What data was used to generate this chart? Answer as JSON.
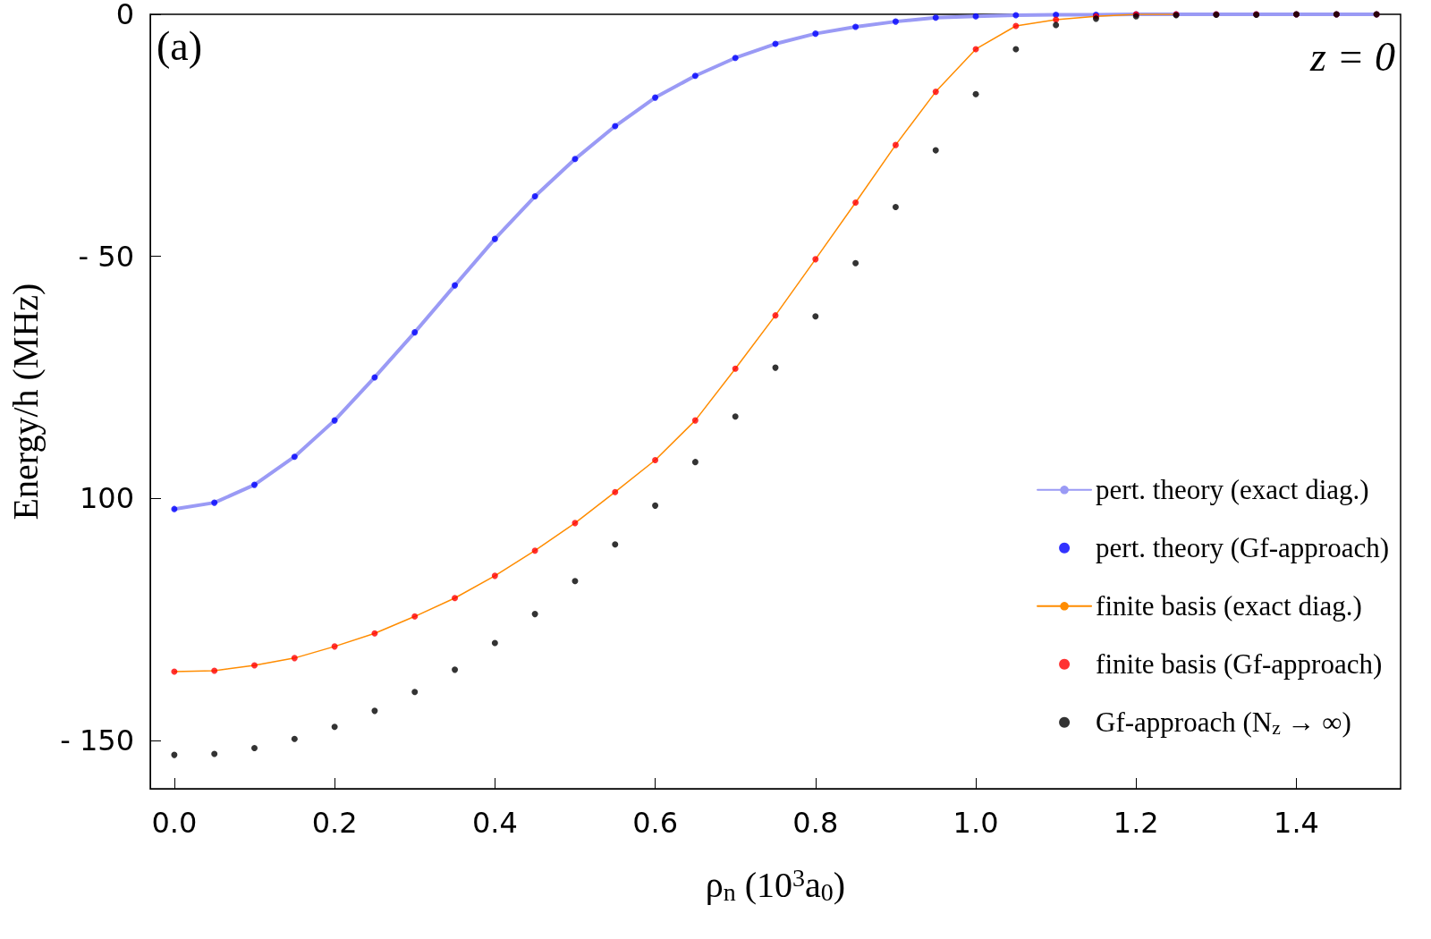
{
  "chart_data": {
    "type": "line",
    "xlabel": "ρ$_{n}$ (10$^{3}$a$_{0}$)",
    "ylabel": "Energy/h (MHz)",
    "annotations": [
      "(a)",
      "z = 0"
    ],
    "x": [
      0,
      0.05,
      0.1,
      0.15,
      0.2,
      0.25,
      0.3,
      0.35,
      0.4,
      0.45,
      0.5,
      0.55,
      0.6,
      0.65,
      0.7,
      0.75,
      0.8,
      0.85,
      0.9,
      0.95,
      1.0,
      1.05,
      1.1,
      1.15,
      1.2,
      1.25,
      1.3,
      1.35,
      1.4,
      1.45,
      1.5
    ],
    "xlim": [
      -0.03,
      1.53
    ],
    "xticks": [
      {
        "value": 0,
        "label": "0.0"
      },
      0.2,
      0.4,
      0.6,
      0.8,
      {
        "value": 1,
        "label": "1.0"
      },
      1.2,
      1.4
    ],
    "ylim": [
      -160,
      0
    ],
    "yticks": [
      0,
      {
        "value": -50,
        "label": "- 50"
      },
      {
        "value": -100,
        "label": "100"
      },
      {
        "value": -150,
        "label": "- 150"
      }
    ],
    "grid": false,
    "legend": "bottom right",
    "series": [
      {
        "name": "pert. theory (exact diag.)",
        "marker": "none",
        "color": "#9a9af5",
        "values": [
          -102.2,
          -100.9,
          -97.2,
          -91.4,
          -83.9,
          -75.0,
          -65.7,
          -56.0,
          -46.4,
          -37.6,
          -29.9,
          -23.1,
          -17.2,
          -12.7,
          -9.0,
          -6.1,
          -4.0,
          -2.6,
          -1.5,
          -0.7,
          -0.4,
          -0.2,
          -0.1,
          -0.1,
          0,
          0,
          0,
          0,
          0,
          0,
          0
        ]
      },
      {
        "name": "pert. theory (Gf-approach)",
        "type": "scatter",
        "marker": "circle",
        "color": "#0000ff",
        "values": [
          -102.2,
          -100.9,
          -97.2,
          -91.4,
          -83.9,
          -75.0,
          -65.7,
          -56.0,
          -46.4,
          -37.6,
          -29.9,
          -23.1,
          -17.2,
          -12.7,
          -9.0,
          -6.1,
          -4.0,
          -2.6,
          -1.5,
          -0.7,
          -0.4,
          -0.2,
          -0.1,
          -0.1,
          0,
          0,
          0,
          0,
          0,
          0,
          0
        ]
      },
      {
        "name": "finite basis (exact diag.)",
        "marker": "none",
        "color": "#ff8c00",
        "values": [
          -135.8,
          -135.6,
          -134.5,
          -133.0,
          -130.6,
          -127.9,
          -124.4,
          -120.6,
          -116.0,
          -110.8,
          -105.1,
          -98.7,
          -92.1,
          -83.9,
          -73.2,
          -62.2,
          -50.6,
          -38.9,
          -27.0,
          -16.0,
          -7.2,
          -2.4,
          -1.1,
          -0.4,
          0,
          0,
          null,
          null,
          null,
          null,
          null
        ]
      },
      {
        "name": "finite basis (Gf-approach)",
        "type": "scatter",
        "marker": "circle",
        "color": "#ff0000",
        "values": [
          -135.8,
          -135.6,
          -134.5,
          -133.0,
          -130.6,
          -127.9,
          -124.4,
          -120.6,
          -116.0,
          -110.8,
          -105.1,
          -98.7,
          -92.1,
          -83.9,
          -73.2,
          -62.2,
          -50.6,
          -38.9,
          -27.0,
          -16.0,
          -7.2,
          -2.4,
          -1.1,
          -0.4,
          0,
          0,
          0,
          0,
          0,
          0,
          0
        ]
      },
      {
        "name": "Gf-approach (N$_{z}$ → ∞)",
        "type": "scatter",
        "marker": "circle",
        "color": "#000000",
        "values": [
          -153.0,
          -152.8,
          -151.6,
          -149.7,
          -147.2,
          -143.9,
          -140.0,
          -135.4,
          -129.9,
          -123.9,
          -117.1,
          -109.5,
          -101.5,
          -92.5,
          -83.1,
          -73.0,
          -62.4,
          -51.4,
          -39.8,
          -28.1,
          -16.5,
          -7.2,
          -2.2,
          -0.9,
          -0.4,
          -0.2,
          -0.1,
          -0.1,
          0,
          0,
          0
        ]
      }
    ]
  }
}
